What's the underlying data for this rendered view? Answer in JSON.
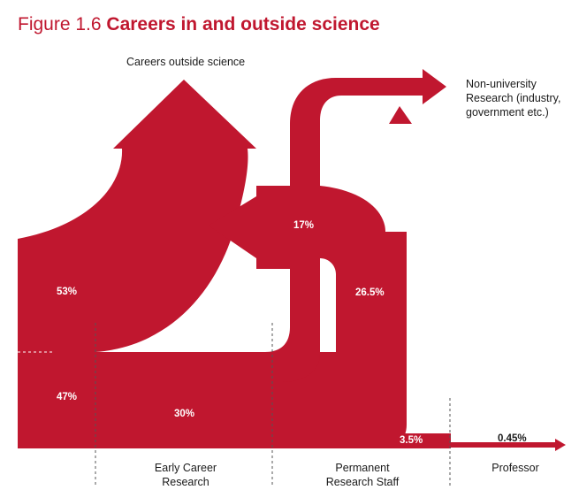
{
  "figure": {
    "number": "Figure 1.6",
    "title": "Careers in and outside science"
  },
  "labels": {
    "outside": "Careers outside science",
    "nonuniv": "Non-university\nResearch (industry,\ngovernment etc.)"
  },
  "stages": {
    "early": "Early Career\nResearch",
    "permanent": "Permanent\nResearch Staff",
    "professor": "Professor"
  },
  "percentages": {
    "p53": "53%",
    "p47": "47%",
    "p17": "17%",
    "p26": "26.5%",
    "p30": "30%",
    "p35": "3.5%",
    "p045": "0.45%"
  },
  "colors": {
    "flow": "#c0172f",
    "accent": "#c0172f",
    "divider": "#555555"
  }
}
